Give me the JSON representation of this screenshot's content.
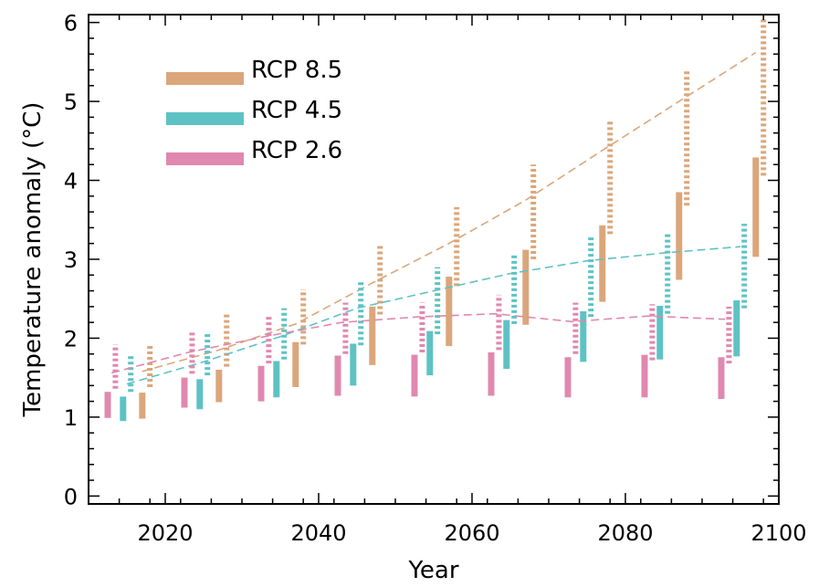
{
  "chart_data": {
    "type": "range-bar",
    "title": "",
    "xlabel": "Year",
    "ylabel": "Temperature anomaly (°C)",
    "xlim": [
      2010,
      2100
    ],
    "ylim": [
      -0.1,
      6.1
    ],
    "x_ticks": [
      2020,
      2040,
      2060,
      2080,
      2100
    ],
    "y_ticks": [
      0,
      1,
      2,
      3,
      4,
      5,
      6
    ],
    "legend": {
      "position": "top-left"
    },
    "series": [
      {
        "name": "RCP 8.5",
        "color": "#dba67a",
        "solid": [
          {
            "x": 2017,
            "low": 0.98,
            "high": 1.31
          },
          {
            "x": 2027,
            "low": 1.19,
            "high": 1.6
          },
          {
            "x": 2037,
            "low": 1.38,
            "high": 1.95
          },
          {
            "x": 2047,
            "low": 1.66,
            "high": 2.4
          },
          {
            "x": 2057,
            "low": 1.9,
            "high": 2.78
          },
          {
            "x": 2067,
            "low": 2.17,
            "high": 3.12
          },
          {
            "x": 2077,
            "low": 2.46,
            "high": 3.43
          },
          {
            "x": 2087,
            "low": 2.74,
            "high": 3.85
          },
          {
            "x": 2097,
            "low": 3.03,
            "high": 4.29
          }
        ],
        "dotted": [
          {
            "x": 2018,
            "low": 1.38,
            "high": 1.9
          },
          {
            "x": 2028,
            "low": 1.64,
            "high": 2.3
          },
          {
            "x": 2038,
            "low": 1.92,
            "high": 2.62
          },
          {
            "x": 2048,
            "low": 2.3,
            "high": 3.17
          },
          {
            "x": 2058,
            "low": 2.66,
            "high": 3.66
          },
          {
            "x": 2068,
            "low": 3.0,
            "high": 4.2
          },
          {
            "x": 2078,
            "low": 3.32,
            "high": 4.75
          },
          {
            "x": 2088,
            "low": 3.68,
            "high": 5.4
          },
          {
            "x": 2098,
            "low": 4.06,
            "high": 6.05
          }
        ],
        "mean": [
          {
            "x": 2017,
            "y": 1.58
          },
          {
            "x": 2027,
            "y": 1.85
          },
          {
            "x": 2037,
            "y": 2.18
          },
          {
            "x": 2047,
            "y": 2.7
          },
          {
            "x": 2057,
            "y": 3.2
          },
          {
            "x": 2067,
            "y": 3.75
          },
          {
            "x": 2077,
            "y": 4.38
          },
          {
            "x": 2087,
            "y": 5.0
          },
          {
            "x": 2097,
            "y": 5.62
          }
        ]
      },
      {
        "name": "RCP 4.5",
        "color": "#5ec2c4",
        "solid": [
          {
            "x": 2014.5,
            "low": 0.95,
            "high": 1.26
          },
          {
            "x": 2024.5,
            "low": 1.1,
            "high": 1.48
          },
          {
            "x": 2034.5,
            "low": 1.25,
            "high": 1.71
          },
          {
            "x": 2044.5,
            "low": 1.4,
            "high": 1.93
          },
          {
            "x": 2054.5,
            "low": 1.53,
            "high": 2.09
          },
          {
            "x": 2064.5,
            "low": 1.61,
            "high": 2.23
          },
          {
            "x": 2074.5,
            "low": 1.7,
            "high": 2.34
          },
          {
            "x": 2084.5,
            "low": 1.73,
            "high": 2.41
          },
          {
            "x": 2094.5,
            "low": 1.77,
            "high": 2.48
          }
        ],
        "dotted": [
          {
            "x": 2015.5,
            "low": 1.32,
            "high": 1.8
          },
          {
            "x": 2025.5,
            "low": 1.53,
            "high": 2.08
          },
          {
            "x": 2035.5,
            "low": 1.73,
            "high": 2.38
          },
          {
            "x": 2045.5,
            "low": 1.91,
            "high": 2.71
          },
          {
            "x": 2055.5,
            "low": 2.05,
            "high": 2.9
          },
          {
            "x": 2065.5,
            "low": 2.18,
            "high": 3.07
          },
          {
            "x": 2075.5,
            "low": 2.27,
            "high": 3.28
          },
          {
            "x": 2085.5,
            "low": 2.31,
            "high": 3.32
          },
          {
            "x": 2095.5,
            "low": 2.38,
            "high": 3.45
          }
        ],
        "mean": [
          {
            "x": 2015,
            "y": 1.42
          },
          {
            "x": 2025,
            "y": 1.7
          },
          {
            "x": 2035,
            "y": 2.02
          },
          {
            "x": 2045,
            "y": 2.38
          },
          {
            "x": 2055,
            "y": 2.6
          },
          {
            "x": 2065,
            "y": 2.82
          },
          {
            "x": 2075,
            "y": 2.98
          },
          {
            "x": 2085,
            "y": 3.08
          },
          {
            "x": 2095,
            "y": 3.16
          }
        ]
      },
      {
        "name": "RCP 2.6",
        "color": "#e088b0",
        "solid": [
          {
            "x": 2012.5,
            "low": 0.99,
            "high": 1.32
          },
          {
            "x": 2022.5,
            "low": 1.12,
            "high": 1.5
          },
          {
            "x": 2032.5,
            "low": 1.2,
            "high": 1.65
          },
          {
            "x": 2042.5,
            "low": 1.27,
            "high": 1.78
          },
          {
            "x": 2052.5,
            "low": 1.26,
            "high": 1.79
          },
          {
            "x": 2062.5,
            "low": 1.27,
            "high": 1.82
          },
          {
            "x": 2072.5,
            "low": 1.25,
            "high": 1.76
          },
          {
            "x": 2082.5,
            "low": 1.25,
            "high": 1.79
          },
          {
            "x": 2092.5,
            "low": 1.23,
            "high": 1.76
          }
        ],
        "dotted": [
          {
            "x": 2013.5,
            "low": 1.36,
            "high": 1.92
          },
          {
            "x": 2023.5,
            "low": 1.55,
            "high": 2.1
          },
          {
            "x": 2033.5,
            "low": 1.68,
            "high": 2.3
          },
          {
            "x": 2043.5,
            "low": 1.8,
            "high": 2.45
          },
          {
            "x": 2053.5,
            "low": 1.82,
            "high": 2.45
          },
          {
            "x": 2063.5,
            "low": 1.85,
            "high": 2.55
          },
          {
            "x": 2073.5,
            "low": 1.8,
            "high": 2.45
          },
          {
            "x": 2083.5,
            "low": 1.72,
            "high": 2.43
          },
          {
            "x": 2093.5,
            "low": 1.68,
            "high": 2.4
          }
        ],
        "mean": [
          {
            "x": 2013,
            "y": 1.56
          },
          {
            "x": 2023,
            "y": 1.82
          },
          {
            "x": 2033,
            "y": 2.02
          },
          {
            "x": 2043,
            "y": 2.2
          },
          {
            "x": 2053,
            "y": 2.27
          },
          {
            "x": 2063,
            "y": 2.31
          },
          {
            "x": 2073,
            "y": 2.21
          },
          {
            "x": 2083,
            "y": 2.28
          },
          {
            "x": 2093,
            "y": 2.24
          }
        ]
      }
    ]
  }
}
